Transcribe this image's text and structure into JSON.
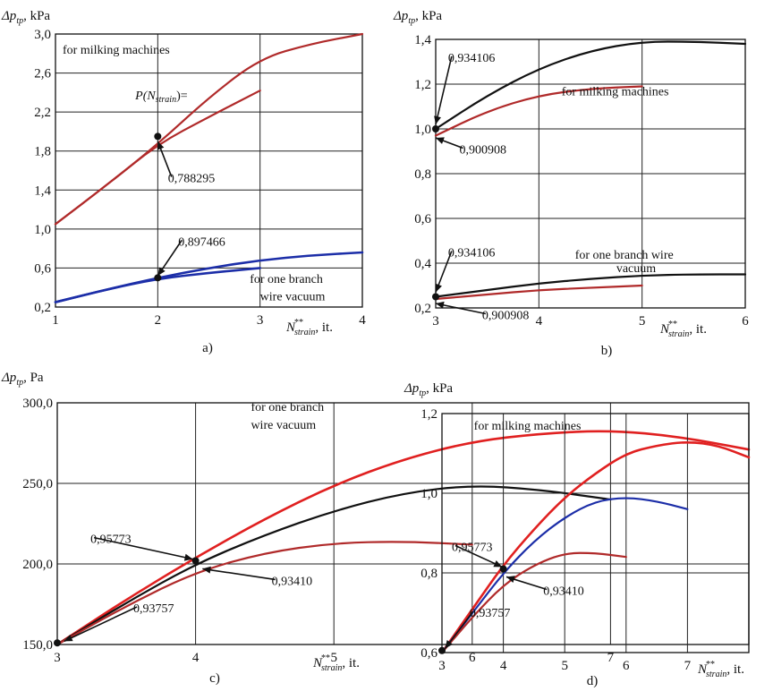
{
  "chart_data": [
    {
      "type": "line",
      "caption": "a)",
      "ylabel_main": "Δp",
      "ylabel_sub": "tp",
      "ylabel_unit": ", kPa",
      "xlabel_main": "N",
      "xlabel_sub": "strain",
      "xlabel_sup": "**",
      "xlabel_unit": ", it.",
      "xlim": [
        1,
        4
      ],
      "ylim": [
        0.2,
        3.0
      ],
      "xticks": [
        1,
        2,
        3,
        4
      ],
      "xtick_labels": [
        "1",
        "2",
        "3",
        "4"
      ],
      "yticks": [
        0.2,
        0.6,
        1.0,
        1.4,
        1.8,
        2.2,
        2.6,
        3.0
      ],
      "ytick_labels": [
        "0,2",
        "0,6",
        "1,0",
        "1,4",
        "1,8",
        "2,2",
        "2,6",
        "3,0"
      ],
      "grid": true,
      "series": [
        {
          "color": "#b02a2a",
          "width": 2.2,
          "x": [
            1,
            1.5,
            2,
            2.5,
            3,
            3.5,
            4
          ],
          "y": [
            1.05,
            1.45,
            1.87,
            2.35,
            2.75,
            2.9,
            3.0
          ]
        },
        {
          "color": "#b02a2a",
          "width": 2.2,
          "x": [
            1,
            1.5,
            2,
            2.5,
            3
          ],
          "y": [
            1.05,
            1.45,
            1.87,
            2.15,
            2.42
          ]
        },
        {
          "color": "#1c2ea8",
          "width": 2.6,
          "x": [
            1,
            1.5,
            2,
            2.5,
            3,
            3.5,
            4
          ],
          "y": [
            0.25,
            0.38,
            0.5,
            0.6,
            0.68,
            0.73,
            0.76
          ]
        },
        {
          "color": "#1c2ea8",
          "width": 2.6,
          "x": [
            1,
            1.5,
            2,
            2.5,
            3
          ],
          "y": [
            0.25,
            0.38,
            0.49,
            0.55,
            0.6
          ]
        }
      ],
      "markers": [
        {
          "x": 2,
          "y": 1.95
        },
        {
          "x": 2,
          "y": 0.5
        }
      ],
      "annotations": [
        {
          "text": "for milking machines",
          "x": 1.07,
          "y": 2.8
        },
        {
          "text": "P(N",
          "sub": "strain",
          "after": ")=",
          "x": 1.78,
          "y": 2.33,
          "italic": true
        },
        {
          "text": "0,788295",
          "x": 2.1,
          "y": 1.48,
          "ptr": [
            2.0,
            1.9
          ]
        },
        {
          "text": "0,897466",
          "x": 2.2,
          "y": 0.83,
          "ptr": [
            2.0,
            0.52
          ]
        },
        {
          "text": "for one branch",
          "x": 2.9,
          "y": 0.45
        },
        {
          "text": "wire vacuum",
          "x": 3.0,
          "y": 0.27
        }
      ]
    },
    {
      "type": "line",
      "caption": "b)",
      "ylabel_main": "Δp",
      "ylabel_sub": "tp",
      "ylabel_unit": ", kPa",
      "xlabel_main": "N",
      "xlabel_sub": "strain",
      "xlabel_sup": "**",
      "xlabel_unit": ", it.",
      "xlim": [
        3,
        6
      ],
      "ylim": [
        0.2,
        1.4
      ],
      "xticks": [
        3,
        4,
        5,
        6
      ],
      "xtick_labels": [
        "3",
        "4",
        "5",
        "6"
      ],
      "yticks": [
        0.2,
        0.4,
        0.6,
        0.8,
        1.0,
        1.2,
        1.4
      ],
      "ytick_labels": [
        "0,2",
        "0,4",
        "0,6",
        "0,8",
        "1,0",
        "1,2",
        "1,4"
      ],
      "grid": true,
      "series": [
        {
          "color": "#111111",
          "width": 2.2,
          "x": [
            3,
            3.5,
            4,
            4.5,
            5,
            5.5,
            6
          ],
          "y": [
            1.0,
            1.15,
            1.27,
            1.35,
            1.39,
            1.39,
            1.38
          ]
        },
        {
          "color": "#b02a2a",
          "width": 2.2,
          "x": [
            3,
            3.5,
            4,
            4.5,
            5
          ],
          "y": [
            0.97,
            1.08,
            1.15,
            1.18,
            1.19
          ]
        },
        {
          "color": "#111111",
          "width": 2.2,
          "x": [
            3,
            3.5,
            4,
            4.5,
            5,
            5.5,
            6
          ],
          "y": [
            0.25,
            0.28,
            0.31,
            0.33,
            0.345,
            0.35,
            0.35
          ]
        },
        {
          "color": "#b02a2a",
          "width": 2.2,
          "x": [
            3,
            3.5,
            4,
            4.5,
            5
          ],
          "y": [
            0.24,
            0.26,
            0.28,
            0.29,
            0.3
          ]
        }
      ],
      "markers": [
        {
          "x": 3,
          "y": 1.0
        },
        {
          "x": 3,
          "y": 0.25
        }
      ],
      "annotations": [
        {
          "text": "0,934106",
          "x": 3.12,
          "y": 1.3,
          "ptr": [
            3.0,
            1.02
          ]
        },
        {
          "text": "for milking machines",
          "x": 4.22,
          "y": 1.15
        },
        {
          "text": "0,900908",
          "x": 3.23,
          "y": 0.89,
          "ptr": [
            3.0,
            0.96
          ]
        },
        {
          "text": "0,934106",
          "x": 3.12,
          "y": 0.43,
          "ptr": [
            3.0,
            0.27
          ]
        },
        {
          "text": "for one branch wire",
          "x": 4.35,
          "y": 0.42
        },
        {
          "text": "vacuum",
          "x": 4.75,
          "y": 0.36
        },
        {
          "text": "0,900908",
          "x": 3.45,
          "y": 0.15,
          "ptr": [
            3.0,
            0.22
          ],
          "outside": true
        }
      ]
    },
    {
      "type": "line",
      "caption": "c)",
      "ylabel_main": "Δp",
      "ylabel_sub": "tp",
      "ylabel_unit": ", Pa",
      "xlabel_main": "N",
      "xlabel_sub": "strain",
      "xlabel_sup": "**",
      "xlabel_unit": ", it.",
      "xlim": [
        3,
        8
      ],
      "ylim": [
        150,
        300
      ],
      "xticks": [
        3,
        4,
        5,
        6,
        7
      ],
      "xtick_labels": [
        "3",
        "4",
        "5",
        "6",
        "7"
      ],
      "yticks": [
        150,
        200,
        250,
        300
      ],
      "ytick_labels": [
        "150,0",
        "200,0",
        "250,0",
        "300,0"
      ],
      "grid": true,
      "series": [
        {
          "color": "#e02020",
          "width": 2.6,
          "x": [
            3,
            3.5,
            4,
            4.5,
            5,
            5.5,
            6,
            6.5,
            7,
            7.5,
            8
          ],
          "y": [
            150,
            178,
            204,
            228,
            249,
            265,
            276,
            281,
            283,
            279,
            271
          ]
        },
        {
          "color": "#111111",
          "width": 2.2,
          "x": [
            3,
            3.5,
            4,
            4.5,
            5,
            5.5,
            6,
            6.5,
            7
          ],
          "y": [
            150,
            176,
            200,
            218,
            233,
            244,
            249,
            246,
            240
          ]
        },
        {
          "color": "#b02a2a",
          "width": 2.2,
          "x": [
            3,
            3.5,
            4,
            4.5,
            5,
            5.5,
            6
          ],
          "y": [
            150,
            174,
            195,
            207,
            213,
            214,
            212
          ]
        }
      ],
      "markers": [
        {
          "x": 4,
          "y": 202
        },
        {
          "x": 3,
          "y": 151
        }
      ],
      "annotations": [
        {
          "text": "for one branch",
          "x": 4.4,
          "y": 295
        },
        {
          "text": "wire vacuum",
          "x": 4.4,
          "y": 284
        },
        {
          "text": "0,95773",
          "x": 3.24,
          "y": 213,
          "ptr": [
            3.98,
            203
          ]
        },
        {
          "text": "0,93410",
          "x": 4.55,
          "y": 187,
          "ptr": [
            4.05,
            197
          ]
        },
        {
          "text": "0,93757",
          "x": 3.55,
          "y": 170,
          "ptr": [
            3.05,
            152
          ]
        }
      ]
    },
    {
      "type": "line",
      "caption": "d)",
      "ylabel_main": "Δp",
      "ylabel_sub": "tp",
      "ylabel_unit": ", kPa",
      "xlabel_main": "N",
      "xlabel_sub": "strain",
      "xlabel_sup": "**",
      "xlabel_unit": ", it.",
      "xlim": [
        3,
        8
      ],
      "ylim": [
        0.6,
        1.2
      ],
      "xticks": [
        3,
        4,
        5,
        6,
        7
      ],
      "xtick_labels": [
        "3",
        "4",
        "5",
        "6",
        "7"
      ],
      "yticks": [
        0.6,
        0.8,
        1.0,
        1.2
      ],
      "ytick_labels": [
        "0,6",
        "0,8",
        "1,0",
        "1,2"
      ],
      "grid": true,
      "series": [
        {
          "color": "#e02020",
          "width": 2.6,
          "x": [
            3,
            3.5,
            4,
            4.5,
            5,
            5.5,
            6,
            6.5,
            7,
            7.5,
            8
          ],
          "y": [
            0.6,
            0.71,
            0.82,
            0.91,
            0.99,
            1.05,
            1.1,
            1.12,
            1.13,
            1.12,
            1.09
          ]
        },
        {
          "color": "#1c2ea8",
          "width": 2.2,
          "x": [
            3,
            3.5,
            4,
            4.5,
            5,
            5.5,
            6,
            6.5,
            7
          ],
          "y": [
            0.6,
            0.7,
            0.8,
            0.88,
            0.94,
            0.98,
            0.99,
            0.98,
            0.96
          ]
        },
        {
          "color": "#b02a2a",
          "width": 2.2,
          "x": [
            3,
            3.5,
            4,
            4.5,
            5,
            5.5,
            6
          ],
          "y": [
            0.6,
            0.69,
            0.77,
            0.82,
            0.85,
            0.85,
            0.84
          ]
        }
      ],
      "markers": [
        {
          "x": 4,
          "y": 0.81
        },
        {
          "x": 3,
          "y": 0.605
        }
      ],
      "annotations": [
        {
          "text": "for milking machines",
          "x": 3.52,
          "y": 1.16
        },
        {
          "text": "0,95773",
          "x": 3.16,
          "y": 0.855,
          "ptr": [
            3.98,
            0.815
          ]
        },
        {
          "text": "0,93410",
          "x": 4.65,
          "y": 0.745,
          "ptr": [
            4.05,
            0.79
          ]
        },
        {
          "text": "0,93757",
          "x": 3.45,
          "y": 0.69,
          "ptr": [
            3.05,
            0.61
          ]
        }
      ]
    }
  ]
}
